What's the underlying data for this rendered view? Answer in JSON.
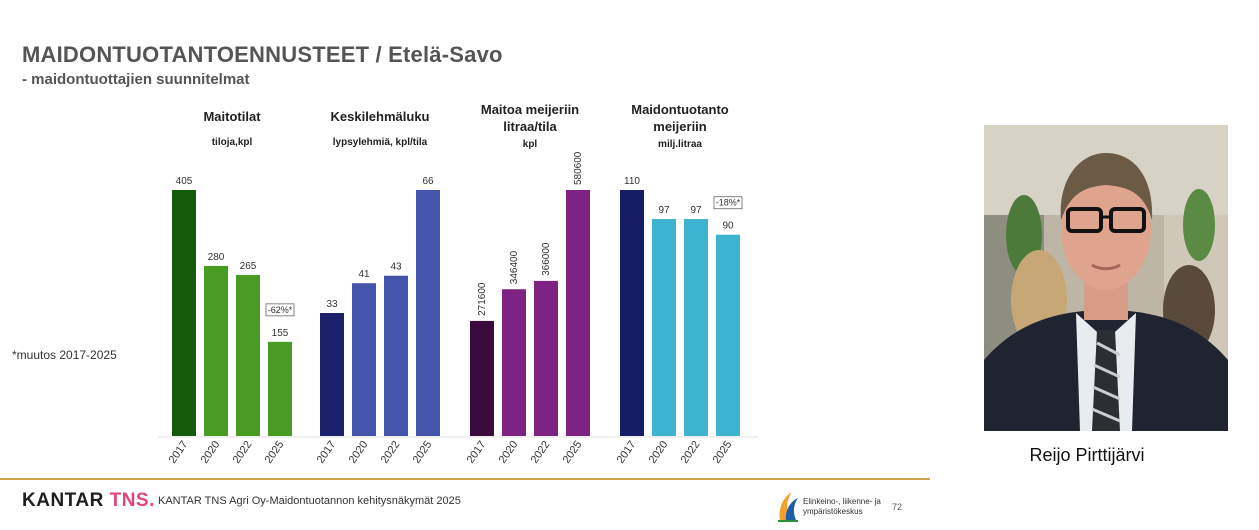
{
  "header": {
    "title": "MAIDONTUOTANTOENNUSTEET / Etelä-Savo",
    "subtitle": "- maidontuottajien suunnitelmat"
  },
  "note": "*muutos 2017-2025",
  "chart_data": [
    {
      "type": "bar",
      "title": "Maitotilat",
      "subtitle": "tiloja,kpl",
      "categories": [
        "2017",
        "2020",
        "2022",
        "2025"
      ],
      "values": [
        405,
        280,
        265,
        155
      ],
      "value_labels": [
        "405",
        "280",
        "265",
        "155"
      ],
      "colors": [
        "#145c0c",
        "#479c21",
        "#479c21",
        "#479c21"
      ],
      "change_label": "-62%*"
    },
    {
      "type": "bar",
      "title": "Keskilehmäluku",
      "subtitle": "lypsylehmiä, kpl/tila",
      "categories": [
        "2017",
        "2020",
        "2022",
        "2025"
      ],
      "values": [
        33,
        41,
        43,
        66
      ],
      "value_labels": [
        "33",
        "41",
        "43",
        "66"
      ],
      "colors": [
        "#1a2069",
        "#4454aa",
        "#4454aa",
        "#4454aa"
      ]
    },
    {
      "type": "bar",
      "title": "Maitoa meijeriin litraa/tila",
      "subtitle": "kpl",
      "categories": [
        "2017",
        "2020",
        "2022",
        "2025"
      ],
      "values": [
        271600,
        346400,
        366000,
        580600
      ],
      "value_labels": [
        "271600",
        "346400",
        "366000",
        "580600"
      ],
      "colors": [
        "#3a0a3e",
        "#7e2384",
        "#7e2384",
        "#7e2384"
      ]
    },
    {
      "type": "bar",
      "title": "Maidontuotanto meijeriin",
      "subtitle": "milj.litraa",
      "categories": [
        "2017",
        "2020",
        "2022",
        "2025"
      ],
      "values": [
        110,
        97,
        97,
        90
      ],
      "value_labels": [
        "110",
        "97",
        "97",
        "90"
      ],
      "colors": [
        "#161c66",
        "#3db3d0",
        "#3db3d0",
        "#3db3d0"
      ],
      "change_label": "-18%*"
    }
  ],
  "footer": {
    "brand_main": "KANTAR ",
    "brand_accent": "TNS.",
    "text": "KANTAR TNS Agri Oy-Maidontuotannon kehitysnäkymät 2025",
    "ely_text": "Elinkeino-, liikenne- ja ympäristökeskus",
    "page_number": "72",
    "accent_color": "#e0457b"
  },
  "photo": {
    "caption": "Reijo Pirttijärvi"
  }
}
